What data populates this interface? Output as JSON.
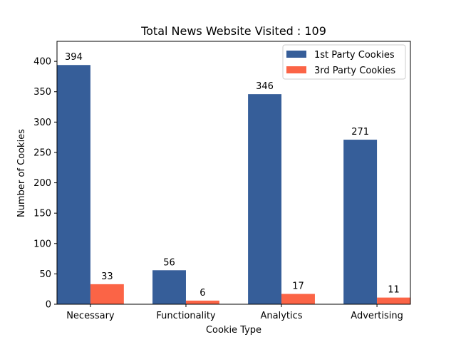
{
  "chart_data": {
    "type": "bar",
    "title": "Total News Website Visited : 109",
    "xlabel": "Cookie Type",
    "ylabel": "Number of Cookies",
    "categories": [
      "Necessary",
      "Functionality",
      "Analytics",
      "Advertising"
    ],
    "series": [
      {
        "name": "1st Party Cookies",
        "values": [
          394,
          56,
          346,
          271
        ],
        "color": "#365e99"
      },
      {
        "name": "3rd Party Cookies",
        "values": [
          33,
          6,
          17,
          11
        ],
        "color": "#fb6446"
      }
    ],
    "ylim": [
      0,
      433
    ],
    "yticks": [
      0,
      50,
      100,
      150,
      200,
      250,
      300,
      350,
      400
    ],
    "grid": false,
    "legend_position": "top-right"
  }
}
